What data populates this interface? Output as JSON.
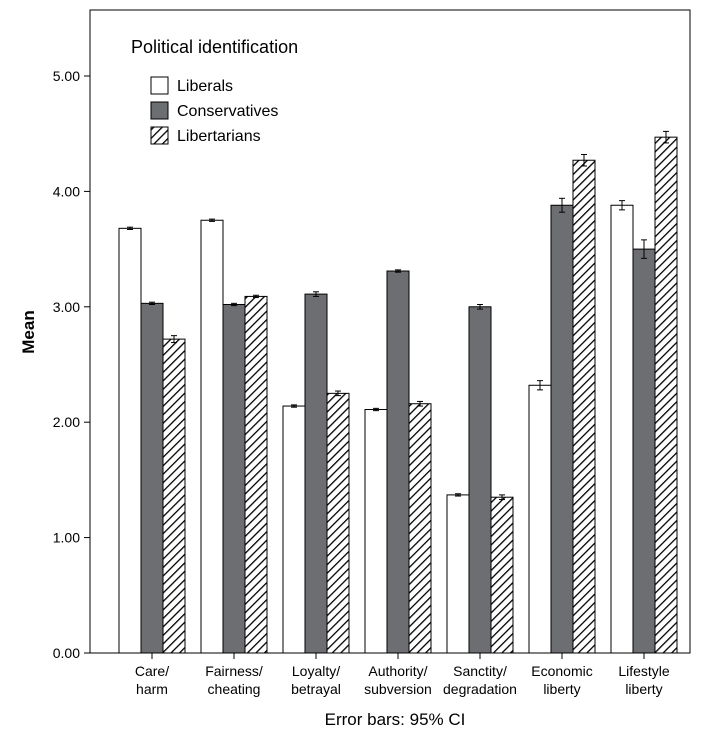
{
  "chart_data": {
    "type": "bar",
    "title": "",
    "xlabel": "Error bars: 95% CI",
    "ylabel": "Mean",
    "ylim": [
      0,
      5.5
    ],
    "yticks": [
      "0.00",
      "1.00",
      "2.00",
      "3.00",
      "4.00",
      "5.00"
    ],
    "grid": false,
    "legend_title": "Political identification",
    "legend_position": "top-left",
    "categories": [
      [
        "Care/",
        "harm"
      ],
      [
        "Fairness/",
        "cheating"
      ],
      [
        "Loyalty/",
        "betrayal"
      ],
      [
        "Authority/",
        "subversion"
      ],
      [
        "Sanctity/",
        "degradation"
      ],
      [
        "Economic",
        "liberty"
      ],
      [
        "Lifestyle",
        "liberty"
      ]
    ],
    "series": [
      {
        "name": "Liberals",
        "fill": "white",
        "values": [
          3.68,
          3.75,
          2.14,
          2.11,
          1.37,
          2.32,
          3.88
        ],
        "ci": [
          0.01,
          0.01,
          0.01,
          0.01,
          0.01,
          0.04,
          0.04
        ]
      },
      {
        "name": "Conservatives",
        "fill": "#6d6e71",
        "values": [
          3.03,
          3.02,
          3.11,
          3.31,
          3.0,
          3.88,
          3.5
        ],
        "ci": [
          0.01,
          0.01,
          0.02,
          0.01,
          0.02,
          0.06,
          0.08
        ]
      },
      {
        "name": "Libertarians",
        "fill": "hatch",
        "values": [
          2.72,
          3.09,
          2.25,
          2.16,
          1.35,
          4.27,
          4.47
        ],
        "ci": [
          0.03,
          0.01,
          0.02,
          0.02,
          0.02,
          0.05,
          0.05
        ]
      }
    ]
  }
}
